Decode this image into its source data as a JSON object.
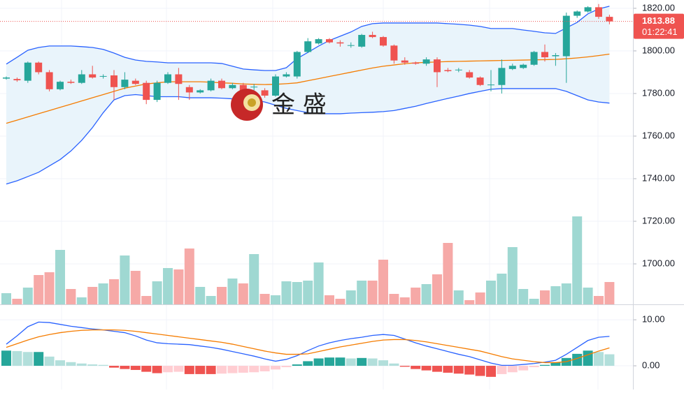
{
  "watermark": "金 盛",
  "chart_data": [
    {
      "type": "candlestick",
      "ylim": [
        1681,
        1823.9
      ],
      "yticks": [
        {
          "value": 1820,
          "label": "1820.00"
        },
        {
          "value": 1800,
          "label": "1800.00"
        },
        {
          "value": 1780,
          "label": "1780.00"
        },
        {
          "value": 1760,
          "label": "1760.00"
        },
        {
          "value": 1740,
          "label": "1740.00"
        },
        {
          "value": 1720,
          "label": "1720.00"
        },
        {
          "value": 1700,
          "label": "1700.00"
        }
      ],
      "grid": true,
      "up_color": "#26a69a",
      "down_color": "#ef5350",
      "volume_up_color": "#9fd8d2",
      "volume_down_color": "#f6a9a7",
      "open": [
        1787,
        1786.8,
        1786,
        1794.5,
        1790,
        1782,
        1785.5,
        1785,
        1789,
        1788,
        1788.5,
        1783,
        1786,
        1785,
        1777,
        1785,
        1789,
        1783,
        1780.5,
        1781.5,
        1786,
        1782.5,
        1784,
        1783,
        1781.5,
        1779,
        1788,
        1788,
        1799.5,
        1803.5,
        1805.5,
        1804,
        1802.5,
        1802,
        1807.5,
        1806.5,
        1802.5,
        1795.5,
        1794.5,
        1794,
        1796,
        1791,
        1791,
        1790,
        1787.5,
        1784,
        1784,
        1791.5,
        1792,
        1793.5,
        1799.5,
        1797.5,
        1797.5,
        1816.5,
        1818.5,
        1820.5,
        1816
      ],
      "high": [
        1788,
        1787.5,
        1795,
        1795,
        1791,
        1786,
        1786.5,
        1791,
        1793,
        1789,
        1791,
        1790,
        1787,
        1786,
        1786,
        1790,
        1792,
        1784,
        1782,
        1787,
        1787,
        1785,
        1785,
        1784.5,
        1782.5,
        1789,
        1790,
        1800,
        1806,
        1806,
        1806,
        1805,
        1804,
        1808,
        1809,
        1807,
        1803,
        1797,
        1795,
        1797,
        1797,
        1792,
        1792,
        1791,
        1788,
        1791,
        1796,
        1794,
        1794,
        1800,
        1803,
        1799,
        1818,
        1819,
        1821,
        1822,
        1817
      ],
      "low": [
        1786.5,
        1785.5,
        1785,
        1789,
        1781,
        1781.5,
        1784.5,
        1784.5,
        1787,
        1787,
        1777,
        1782,
        1784,
        1775,
        1776,
        1784.5,
        1777,
        1777,
        1780,
        1781,
        1782,
        1782,
        1780.5,
        1781.5,
        1778,
        1778.5,
        1787.5,
        1787,
        1799,
        1803,
        1803.5,
        1802,
        1801.5,
        1801.5,
        1806,
        1802,
        1794,
        1793.5,
        1793.5,
        1793,
        1783,
        1790,
        1790,
        1787,
        1783.5,
        1781,
        1780,
        1791,
        1791.5,
        1793,
        1795,
        1793,
        1785,
        1815.5,
        1818,
        1815,
        1812.5
      ],
      "close": [
        1787.5,
        1786.2,
        1794.5,
        1790,
        1782,
        1785.5,
        1785,
        1789,
        1787.5,
        1788.2,
        1783,
        1786.5,
        1784.5,
        1777,
        1785,
        1789,
        1784.5,
        1780.5,
        1781.5,
        1786,
        1782.5,
        1784,
        1781.5,
        1783.2,
        1779,
        1788,
        1789,
        1799.5,
        1804.5,
        1805.5,
        1804,
        1803.5,
        1802.7,
        1807.5,
        1806.5,
        1802.5,
        1795.5,
        1794.5,
        1794,
        1796,
        1790,
        1790.5,
        1791.2,
        1787.5,
        1784,
        1784.2,
        1792,
        1793,
        1793.5,
        1799.5,
        1797,
        1798,
        1816.5,
        1818.5,
        1820.5,
        1816,
        1813.88
      ],
      "volume": [
        16,
        8,
        24,
        42,
        46,
        78,
        22,
        10,
        25,
        30,
        36,
        70,
        48,
        12,
        33,
        52,
        50,
        80,
        25,
        12,
        25,
        37,
        30,
        72,
        15,
        13,
        33,
        32,
        34,
        60,
        13,
        8,
        20,
        34,
        34,
        64,
        15,
        10,
        24,
        29,
        43,
        88,
        20,
        6,
        17,
        34,
        44,
        82,
        22,
        8,
        20,
        26,
        30,
        126,
        24,
        12,
        32
      ],
      "bb_fill_color": "#e9f4fb",
      "bb_line_color": "#2962ff",
      "bb_mid_color": "#f57c00",
      "bb_upper": [
        1793.8,
        1797.0,
        1800.3,
        1801.6,
        1802.3,
        1802.3,
        1802.3,
        1802.0,
        1801.6,
        1800.7,
        1799.0,
        1797.0,
        1795.7,
        1795.1,
        1794.8,
        1794.4,
        1794.4,
        1794.4,
        1794.4,
        1794.4,
        1794.1,
        1792.8,
        1791.5,
        1791.1,
        1790.8,
        1790.8,
        1792.1,
        1796.4,
        1799.3,
        1802.3,
        1804.9,
        1806.9,
        1808.9,
        1811.5,
        1812.8,
        1813.1,
        1813.1,
        1813.1,
        1813.1,
        1813.1,
        1813.1,
        1812.8,
        1812.5,
        1812.1,
        1811.5,
        1810.5,
        1810.5,
        1810.5,
        1809.8,
        1809.2,
        1808.5,
        1808.2,
        1810.8,
        1813.4,
        1817.4,
        1819.7,
        1821.0
      ],
      "bb_middle": [
        1766,
        1767.5,
        1769,
        1770.5,
        1772,
        1773.5,
        1775,
        1776.5,
        1778,
        1779.5,
        1781,
        1782.5,
        1783.5,
        1784.5,
        1785,
        1785.5,
        1785.5,
        1785.5,
        1785.5,
        1785.3,
        1785,
        1784.8,
        1784.5,
        1784.3,
        1784.2,
        1784.3,
        1784.6,
        1785,
        1786,
        1787,
        1788,
        1789,
        1790,
        1791,
        1792,
        1792.8,
        1793.4,
        1794,
        1794.4,
        1794.6,
        1794.8,
        1795,
        1795.1,
        1795.2,
        1795.3,
        1795.4,
        1795.5,
        1795.6,
        1795.7,
        1795.8,
        1795.9,
        1796,
        1796.3,
        1796.7,
        1797.2,
        1797.8,
        1798.5
      ],
      "bb_lower": [
        1737.5,
        1739,
        1741,
        1743,
        1746,
        1749,
        1753,
        1758,
        1764,
        1771,
        1777,
        1779,
        1779.5,
        1779,
        1778.5,
        1778.5,
        1778.5,
        1778,
        1778,
        1778,
        1777.8,
        1777.5,
        1777.2,
        1777,
        1776,
        1774.5,
        1773,
        1772,
        1771,
        1770.5,
        1770.5,
        1770.5,
        1770.8,
        1771,
        1771.2,
        1771.5,
        1772,
        1773,
        1774,
        1775.3,
        1776.5,
        1777.7,
        1778.8,
        1780,
        1781,
        1782,
        1782.3,
        1782.3,
        1782.3,
        1782.3,
        1782.3,
        1782.3,
        1781,
        1779,
        1777,
        1776,
        1775.5
      ],
      "last_price": {
        "value": 1813.88,
        "label": "1813.88"
      },
      "countdown": "01:22:41"
    },
    {
      "type": "macd",
      "ylim": [
        -5.15,
        13.2
      ],
      "yticks": [
        {
          "value": 10,
          "label": "10.00"
        },
        {
          "value": 0,
          "label": "0.00"
        }
      ],
      "hist_colors": [
        "#26a69a",
        "#b2dfdb",
        "#ef5350",
        "#ffcdd2"
      ],
      "macd_color": "#2962ff",
      "signal_color": "#f57c00",
      "histogram": [
        3.3,
        3.2,
        3.0,
        3.0,
        2.0,
        1.2,
        0.8,
        0.5,
        0.3,
        0.2,
        -0.4,
        -0.7,
        -0.9,
        -1.3,
        -1.6,
        -1.4,
        -1.3,
        -1.8,
        -1.8,
        -1.8,
        -1.7,
        -1.6,
        -1.5,
        -1.4,
        -1.2,
        -0.8,
        -0.3,
        0.3,
        1.0,
        1.6,
        1.8,
        1.8,
        1.6,
        1.7,
        1.6,
        1.2,
        0.5,
        -0.2,
        -0.7,
        -1.0,
        -1.3,
        -1.5,
        -1.7,
        -1.9,
        -2.2,
        -2.4,
        -1.8,
        -1.4,
        -1.0,
        -0.3,
        0.2,
        0.7,
        1.7,
        2.6,
        3.3,
        3.0,
        2.5
      ],
      "macd": [
        4.7,
        6.5,
        8.5,
        9.5,
        9.4,
        9.0,
        8.6,
        8.3,
        8.0,
        7.8,
        7.5,
        7.2,
        6.5,
        5.6,
        5.0,
        4.8,
        4.7,
        4.6,
        4.3,
        4.0,
        3.6,
        3.1,
        2.6,
        2.1,
        1.5,
        1.0,
        1.4,
        2.2,
        3.3,
        4.3,
        5.0,
        5.5,
        5.9,
        6.2,
        6.6,
        6.8,
        6.6,
        5.8,
        5.0,
        4.3,
        3.7,
        3.1,
        2.5,
        2.0,
        1.3,
        0.6,
        0.1,
        0.1,
        0.3,
        0.5,
        0.8,
        1.2,
        2.5,
        4.0,
        5.5,
        6.2,
        6.4
      ],
      "signal": [
        4.0,
        4.8,
        5.6,
        6.3,
        6.8,
        7.2,
        7.5,
        7.7,
        7.8,
        7.8,
        7.8,
        7.7,
        7.5,
        7.2,
        6.9,
        6.6,
        6.3,
        6.0,
        5.7,
        5.4,
        5.1,
        4.7,
        4.2,
        3.7,
        3.2,
        2.8,
        2.5,
        2.5,
        2.6,
        3.1,
        3.6,
        4.1,
        4.5,
        4.9,
        5.3,
        5.6,
        5.7,
        5.7,
        5.5,
        5.2,
        4.8,
        4.4,
        4.0,
        3.6,
        3.2,
        2.6,
        2.0,
        1.5,
        1.2,
        0.9,
        0.7,
        0.7,
        0.9,
        1.6,
        2.4,
        3.2,
        3.9
      ]
    }
  ]
}
